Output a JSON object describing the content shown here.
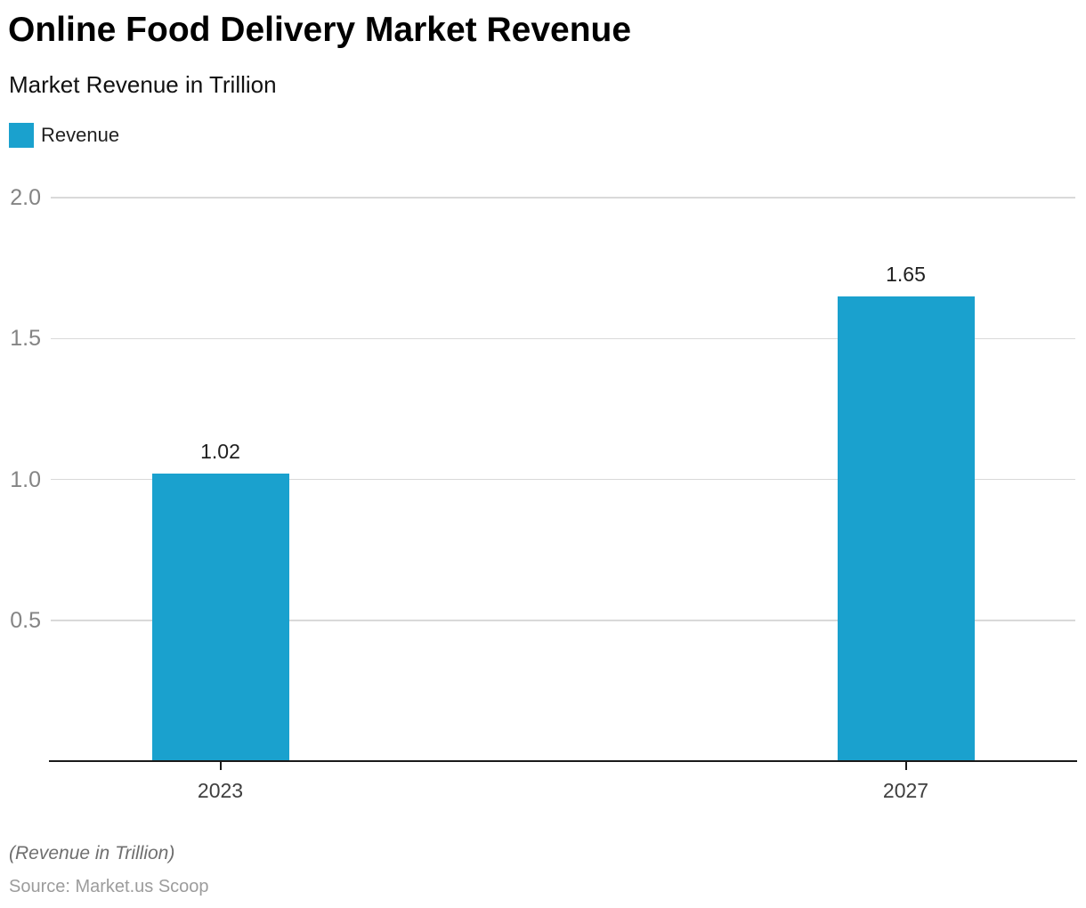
{
  "header": {
    "title": "Online Food Delivery Market Revenue",
    "subtitle": "Market Revenue in Trillion"
  },
  "legend": {
    "items": [
      {
        "label": "Revenue",
        "color": "#1aa1ce"
      }
    ]
  },
  "footer": {
    "note": "(Revenue in Trillion)",
    "source": "Source: Market.us Scoop"
  },
  "colors": {
    "bar": "#1aa1ce",
    "grid": "#d9d9d9",
    "axis": "#1a1a1a",
    "y_label": "#848484",
    "x_label": "#3f3f3f",
    "value_label": "#1f1f1f"
  },
  "chart_data": {
    "type": "bar",
    "title": "Online Food Delivery Market Revenue",
    "subtitle": "Market Revenue in Trillion",
    "categories": [
      "2023",
      "2027"
    ],
    "series": [
      {
        "name": "Revenue",
        "values": [
          1.02,
          1.65
        ]
      }
    ],
    "value_labels": [
      "1.02",
      "1.65"
    ],
    "unit_note": "(Revenue in Trillion)",
    "source": "Source: Market.us Scoop",
    "xlabel": "",
    "ylabel": "",
    "ylim": [
      0,
      2.0
    ],
    "yticks": [
      0.5,
      1.0,
      1.5,
      2.0
    ],
    "ytick_labels": [
      "0.5",
      "1.0",
      "1.5",
      "2.0"
    ],
    "grid": true,
    "legend_position": "top-left",
    "bar_color": "#1aa1ce"
  }
}
